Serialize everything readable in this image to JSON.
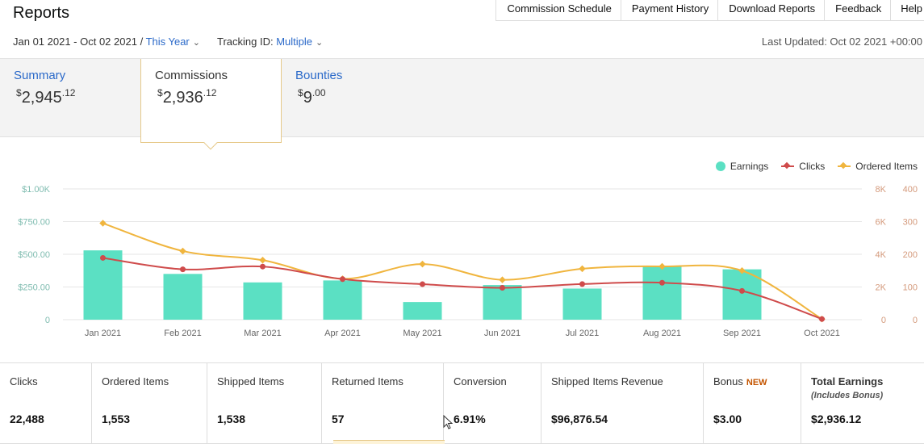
{
  "header": {
    "title": "Reports",
    "links": [
      "Commission Schedule",
      "Payment History",
      "Download Reports",
      "Feedback",
      "Help"
    ],
    "date_range": "Jan 01 2021 - Oct 02 2021",
    "separator": " / ",
    "range_preset": "This Year",
    "tracking_label": "Tracking ID:",
    "tracking_value": "Multiple",
    "last_updated": "Last Updated: Oct 02 2021 +00:00"
  },
  "tabs": [
    {
      "name": "Summary",
      "currency": "$",
      "whole": "2,945",
      "cents": ".12"
    },
    {
      "name": "Commissions",
      "currency": "$",
      "whole": "2,936",
      "cents": ".12"
    },
    {
      "name": "Bounties",
      "currency": "$",
      "whole": "9",
      "cents": ".00"
    }
  ],
  "legend": {
    "earnings": "Earnings",
    "clicks": "Clicks",
    "ordered": "Ordered Items"
  },
  "colors": {
    "earnings": "#5be0c3",
    "clicks": "#cf4b4b",
    "ordered": "#f0b53e",
    "link": "#2a69c9",
    "axis_left": "#7fbcb0",
    "axis_right": "#d49a7c"
  },
  "chart_data": {
    "type": "bar",
    "categories": [
      "Jan 2021",
      "Feb 2021",
      "Mar 2021",
      "Apr 2021",
      "May 2021",
      "Jun 2021",
      "Jul 2021",
      "Aug 2021",
      "Sep 2021",
      "Oct 2021"
    ],
    "y_left_ticks": [
      "0",
      "$250.00",
      "$500.00",
      "$750.00",
      "$1.00K"
    ],
    "y_left_lim": [
      0,
      1000
    ],
    "y_right1_ticks": [
      "0",
      "2K",
      "4K",
      "6K",
      "8K"
    ],
    "y_right1_lim": [
      0,
      8000
    ],
    "y_right2_ticks": [
      "0",
      "100",
      "200",
      "300",
      "400"
    ],
    "y_right2_lim": [
      0,
      400
    ],
    "series": [
      {
        "name": "Earnings",
        "type": "bar",
        "axis": "left",
        "values": [
          530,
          350,
          285,
          300,
          135,
          265,
          238,
          405,
          385,
          0
        ]
      },
      {
        "name": "Clicks",
        "type": "line",
        "axis": "right1",
        "values": [
          3780,
          3080,
          3250,
          2480,
          2170,
          1950,
          2180,
          2260,
          1760,
          40
        ]
      },
      {
        "name": "Ordered Items",
        "type": "line",
        "axis": "right2",
        "values": [
          295,
          210,
          182,
          125,
          170,
          122,
          156,
          163,
          150,
          2
        ]
      }
    ],
    "grid": true,
    "legend_position": "top-right"
  },
  "metrics": [
    {
      "label": "Clicks",
      "value": "22,488"
    },
    {
      "label": "Ordered Items",
      "value": "1,553"
    },
    {
      "label": "Shipped Items",
      "value": "1,538"
    },
    {
      "label": "Returned Items",
      "value": "57"
    },
    {
      "label": "Conversion",
      "value": "6.91%"
    },
    {
      "label": "Shipped Items Revenue",
      "value": "$96,876.54"
    },
    {
      "label": "Bonus",
      "badge": "NEW",
      "value": "$3.00"
    },
    {
      "label": "Total Earnings",
      "sub": "(Includes Bonus)",
      "value": "$2,936.12"
    }
  ]
}
